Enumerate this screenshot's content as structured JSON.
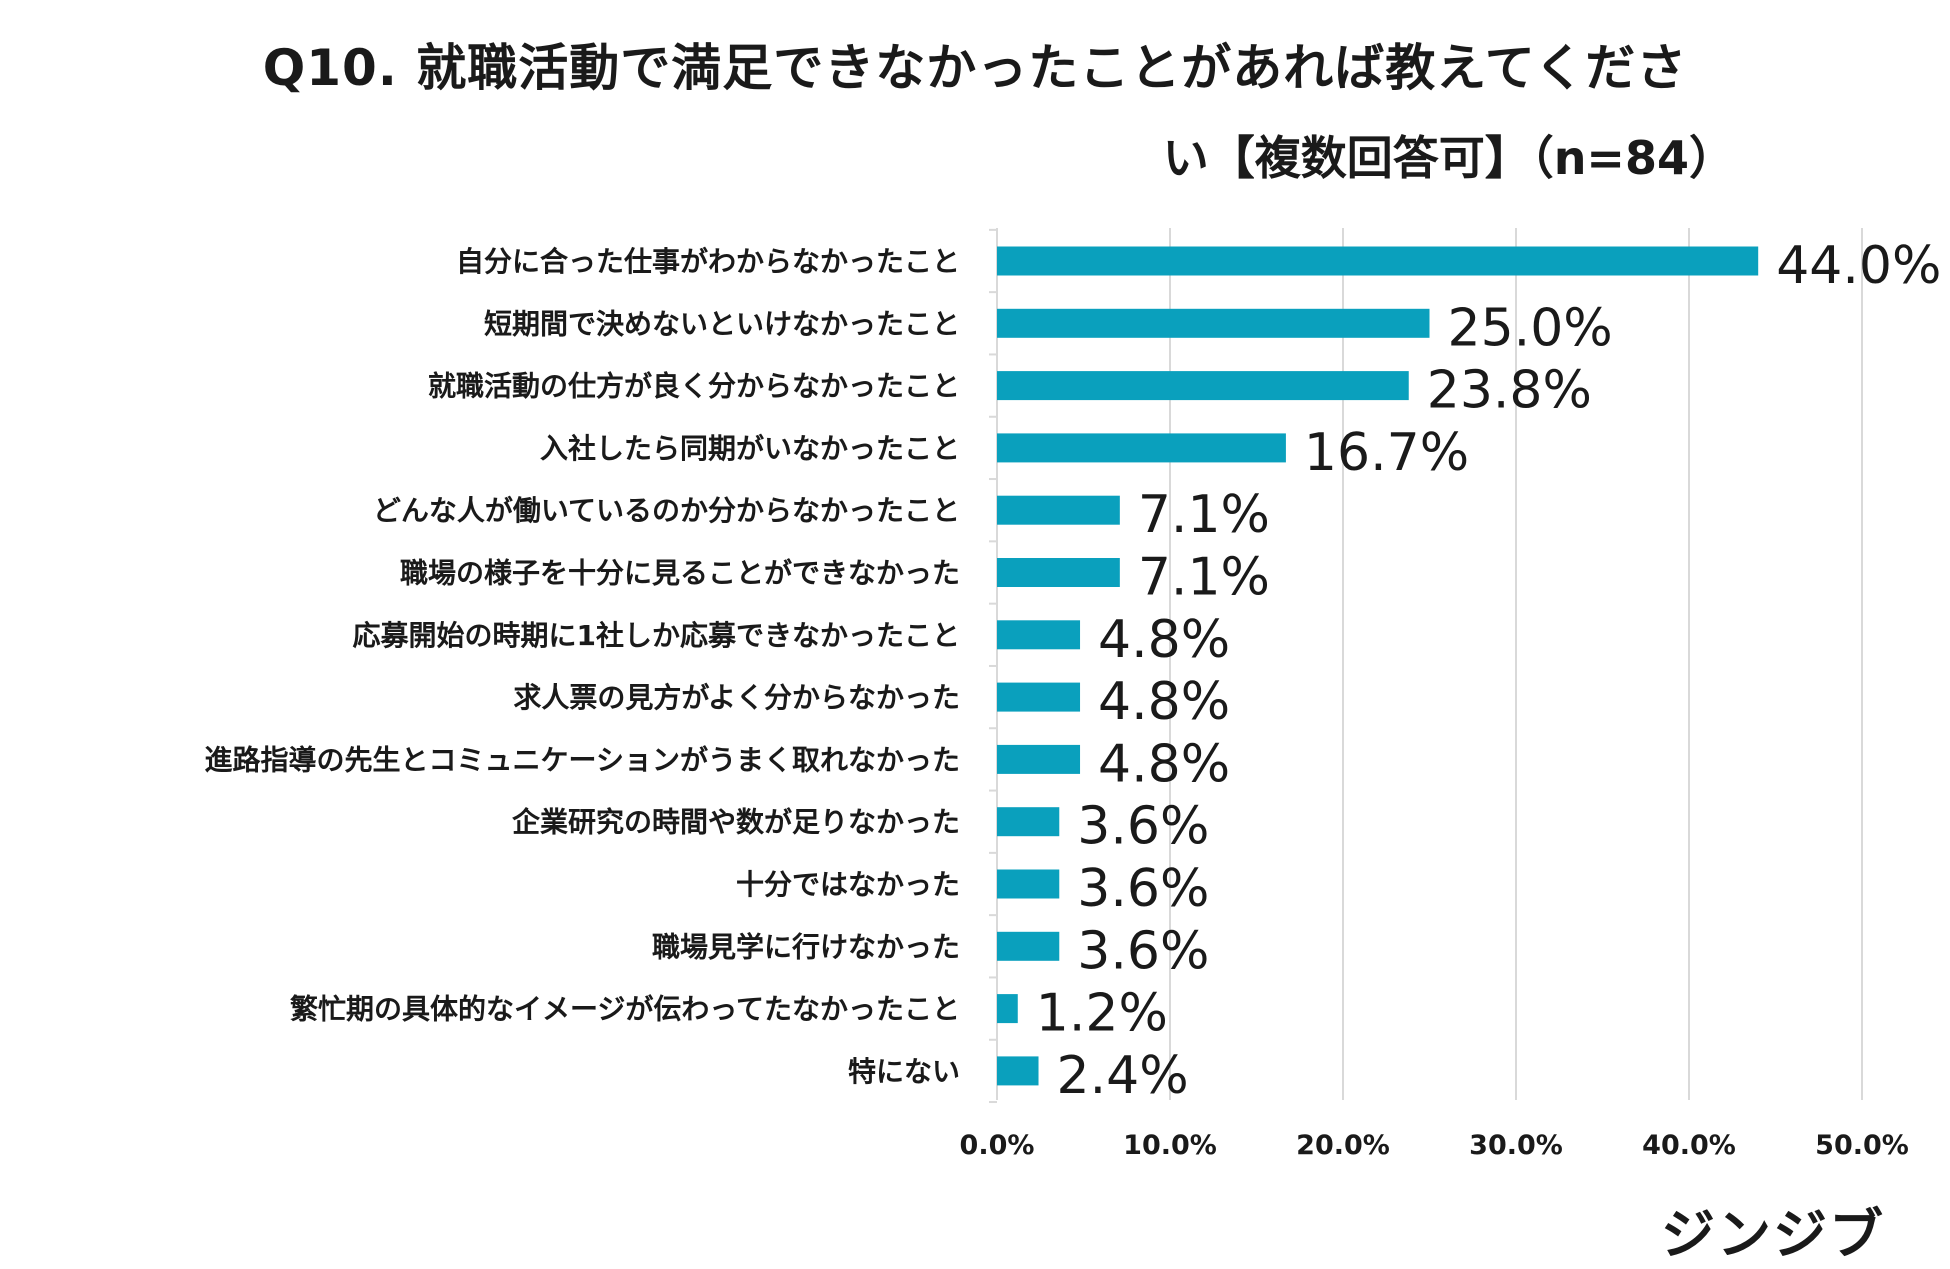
{
  "chart_data": {
    "type": "bar",
    "orientation": "horizontal",
    "title": "Q10.  就職活動で満足できなかったことがあれば教えてくださ",
    "subtitle": "い【複数回答可】（n=84）",
    "categories": [
      "自分に合った仕事がわからなかったこと",
      "短期間で決めないといけなかったこと",
      "就職活動の仕方が良く分からなかったこと",
      "入社したら同期がいなかったこと",
      "どんな人が働いているのか分からなかったこと",
      "職場の様子を十分に見ることができなかった",
      "応募開始の時期に1社しか応募できなかったこと",
      "求人票の見方がよく分からなかった",
      "進路指導の先生とコミュニケーションがうまく取れなかった",
      "企業研究の時間や数が足りなかった",
      "十分ではなかった",
      "職場見学に行けなかった",
      "繁忙期の具体的なイメージが伝わってたなかったこと",
      "特にない"
    ],
    "values": [
      44.0,
      25.0,
      23.8,
      16.7,
      7.1,
      7.1,
      4.8,
      4.8,
      4.8,
      3.6,
      3.6,
      3.6,
      1.2,
      2.4
    ],
    "value_labels": [
      "44.0%",
      "25.0%",
      "23.8%",
      "16.7%",
      "7.1%",
      "7.1%",
      "4.8%",
      "4.8%",
      "4.8%",
      "3.6%",
      "3.6%",
      "3.6%",
      "1.2%",
      "2.4%"
    ],
    "x_ticks": [
      0,
      10,
      20,
      30,
      40,
      50
    ],
    "x_tick_labels": [
      "0.0%",
      "10.0%",
      "20.0%",
      "30.0%",
      "40.0%",
      "50.0%"
    ],
    "xlim": [
      0,
      50
    ],
    "xlabel": "",
    "ylabel": "",
    "grid": true,
    "bar_color": "#0aa0bd",
    "gridline_color": "#d9d9d9"
  },
  "brand": {
    "logo_text": "ジンジブ"
  }
}
